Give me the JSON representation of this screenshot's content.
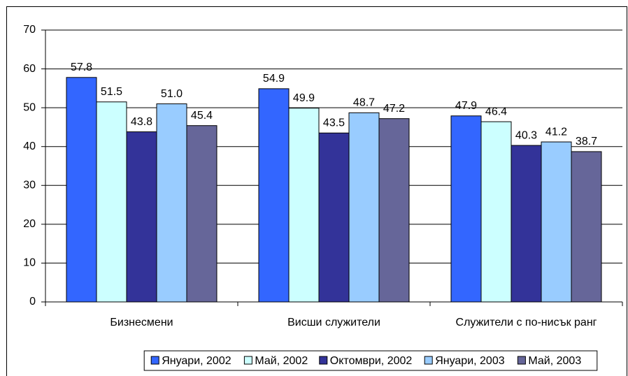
{
  "chart_data": {
    "type": "bar",
    "categories": [
      "Бизнесмени",
      "Висши служители",
      "Служители с по-нисък ранг"
    ],
    "series": [
      {
        "name": "Януари, 2002",
        "color": "#3366ff",
        "values": [
          57.8,
          54.9,
          47.9
        ]
      },
      {
        "name": "Май, 2002",
        "color": "#ccffff",
        "values": [
          51.5,
          49.9,
          46.4
        ]
      },
      {
        "name": "Октомври, 2002",
        "color": "#333399",
        "values": [
          43.8,
          43.5,
          40.3
        ]
      },
      {
        "name": "Януари, 2003",
        "color": "#99ccff",
        "values": [
          51,
          48.7,
          41.2
        ],
        "value_labels": [
          "51.0",
          "48.7",
          "41.2"
        ]
      },
      {
        "name": "Май, 2003",
        "color": "#666699",
        "values": [
          45.4,
          47.2,
          38.7
        ]
      }
    ],
    "ylim": [
      0,
      70
    ],
    "yticks": [
      0,
      10,
      20,
      30,
      40,
      50,
      60,
      70
    ],
    "grid": true,
    "legend": "bottom"
  }
}
